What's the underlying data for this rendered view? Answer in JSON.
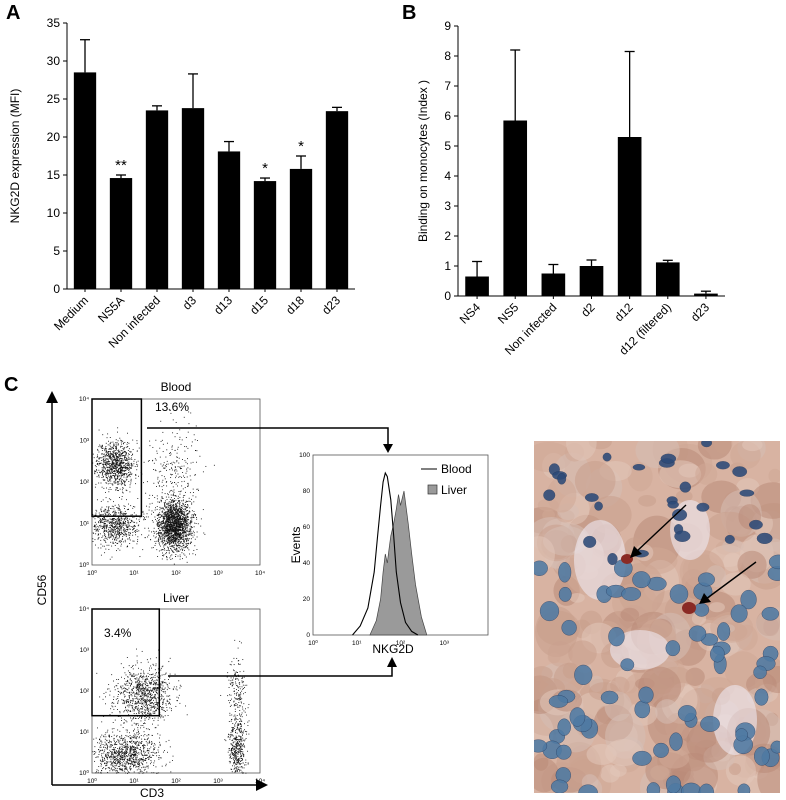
{
  "panels": {
    "a_letter": "A",
    "b_letter": "B",
    "c_letter": "C"
  },
  "chart_data": [
    {
      "type": "bar",
      "panel": "A",
      "ylabel": "NKG2D expression (MFI)",
      "xlabel": "",
      "ylim": [
        0,
        35
      ],
      "yticks": [
        0,
        5,
        10,
        15,
        20,
        25,
        30,
        35
      ],
      "categories": [
        "Medium",
        "NS5A",
        "Non infected",
        "d3",
        "d13",
        "d15",
        "d18",
        "d23"
      ],
      "values": [
        28.5,
        14.6,
        23.5,
        23.8,
        18.1,
        14.2,
        15.8,
        23.4
      ],
      "errors": [
        4.3,
        0.4,
        0.6,
        4.5,
        1.3,
        0.4,
        1.7,
        0.5
      ],
      "annotations": [
        "",
        "**",
        "",
        "",
        "",
        "*",
        "*",
        ""
      ]
    },
    {
      "type": "bar",
      "panel": "B",
      "ylabel": "Binding on monocytes (Index )",
      "xlabel": "",
      "ylim": [
        0,
        9
      ],
      "yticks": [
        0,
        1,
        2,
        3,
        4,
        5,
        6,
        7,
        8,
        9
      ],
      "categories": [
        "NS4",
        "NS5",
        "Non infected",
        "d2",
        "d12",
        "d12 (filtered)",
        "d23"
      ],
      "values": [
        0.65,
        5.85,
        0.75,
        1.0,
        5.3,
        1.12,
        0.08
      ],
      "errors": [
        0.5,
        2.35,
        0.3,
        0.2,
        2.85,
        0.07,
        0.08
      ]
    },
    {
      "type": "scatter",
      "panel": "C-blood",
      "title": "Blood",
      "xlabel": "CD3",
      "ylabel": "CD56",
      "xscale": "log",
      "yscale": "log",
      "xlim": [
        1,
        10000
      ],
      "ylim": [
        1,
        10000
      ],
      "gate_label": "13.6%",
      "tick_labels": [
        "10⁰",
        "10¹",
        "10²",
        "10³",
        "10⁴"
      ]
    },
    {
      "type": "scatter",
      "panel": "C-liver",
      "title": "Liver",
      "xlabel": "CD3",
      "ylabel": "CD56",
      "xscale": "log",
      "yscale": "log",
      "xlim": [
        1,
        10000
      ],
      "ylim": [
        1,
        10000
      ],
      "gate_label": "3.4%",
      "tick_labels": [
        "10⁰",
        "10¹",
        "10²",
        "10³",
        "10⁴"
      ]
    },
    {
      "type": "area",
      "panel": "C-histogram",
      "xlabel": "NKG2D",
      "ylabel": "Events",
      "xscale": "log",
      "xlim": [
        1,
        10000
      ],
      "ylim": [
        0,
        100
      ],
      "yticks": [
        0,
        20,
        40,
        60,
        80,
        100
      ],
      "xtick_labels": [
        "10⁰",
        "10¹",
        "10²",
        "10³"
      ],
      "series": [
        {
          "name": "Blood",
          "x": [
            8,
            12,
            18,
            25,
            30,
            35,
            40,
            45,
            50,
            60,
            70,
            80,
            100,
            130,
            180,
            250
          ],
          "y": [
            0,
            5,
            15,
            35,
            55,
            72,
            85,
            90,
            88,
            75,
            55,
            35,
            18,
            7,
            2,
            0
          ]
        },
        {
          "name": "Liver",
          "x": [
            20,
            28,
            35,
            40,
            45,
            50,
            55,
            60,
            70,
            80,
            90,
            100,
            120,
            150,
            180,
            220,
            300,
            400
          ],
          "y": [
            0,
            8,
            20,
            35,
            45,
            40,
            48,
            55,
            62,
            70,
            78,
            72,
            80,
            62,
            45,
            28,
            10,
            0
          ]
        }
      ],
      "legend": [
        "Blood",
        "Liver"
      ]
    }
  ],
  "colors": {
    "bar_fill": "#000000",
    "liver_fill": "#9a9a9a",
    "blood_line": "#000000"
  }
}
